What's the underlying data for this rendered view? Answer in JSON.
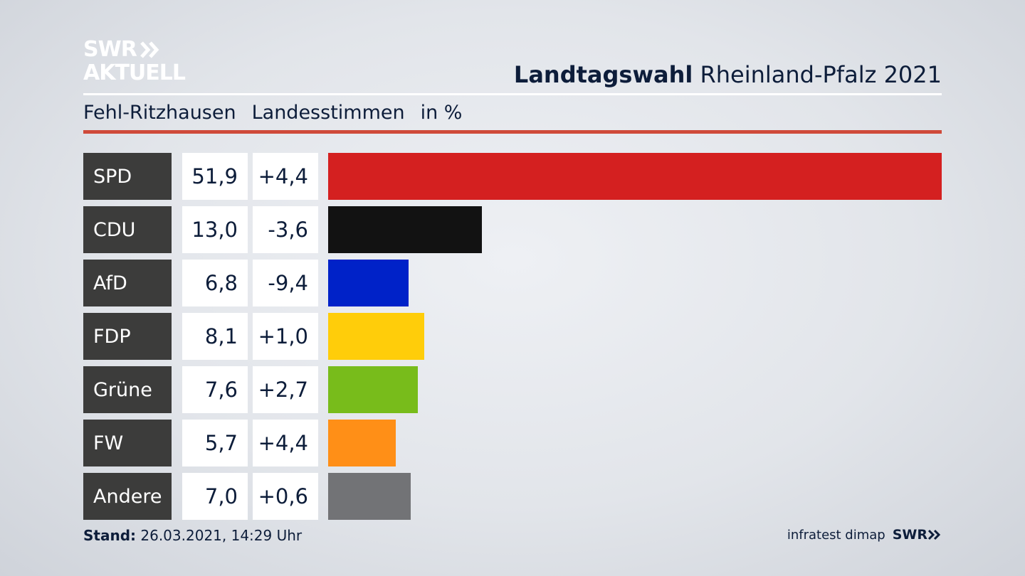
{
  "logo": {
    "line1": "SWR",
    "line2": "AKTUELL"
  },
  "header": {
    "title_bold": "Landtagswahl",
    "title_regular": "Rheinland-Pfalz 2021"
  },
  "subtitle": {
    "place": "Fehl-Ritzhausen",
    "type": "Landesstimmen",
    "unit": "in %"
  },
  "chart_data": {
    "type": "bar",
    "orientation": "horizontal",
    "title": "Landtagswahl Rheinland-Pfalz 2021",
    "subtitle": "Fehl-Ritzhausen Landesstimmen in %",
    "xlim": [
      0,
      51.9
    ],
    "rows": [
      {
        "party": "SPD",
        "value": 51.9,
        "value_label": "51,9",
        "diff_label": "+4,4",
        "color": "#d42020"
      },
      {
        "party": "CDU",
        "value": 13.0,
        "value_label": "13,0",
        "diff_label": "-3,6",
        "color": "#121212"
      },
      {
        "party": "AfD",
        "value": 6.8,
        "value_label": "6,8",
        "diff_label": "-9,4",
        "color": "#0022c8"
      },
      {
        "party": "FDP",
        "value": 8.1,
        "value_label": "8,1",
        "diff_label": "+1,0",
        "color": "#ffcd0a"
      },
      {
        "party": "Grüne",
        "value": 7.6,
        "value_label": "7,6",
        "diff_label": "+2,7",
        "color": "#78bc1b"
      },
      {
        "party": "FW",
        "value": 5.7,
        "value_label": "5,7",
        "diff_label": "+4,4",
        "color": "#ff8f17"
      },
      {
        "party": "Andere",
        "value": 7.0,
        "value_label": "7,0",
        "diff_label": "+0,6",
        "color": "#727376"
      }
    ]
  },
  "footer": {
    "stand_label": "Stand:",
    "stand_value": "26.03.2021, 14:29 Uhr",
    "source": "infratest dimap",
    "brand": "SWR"
  }
}
